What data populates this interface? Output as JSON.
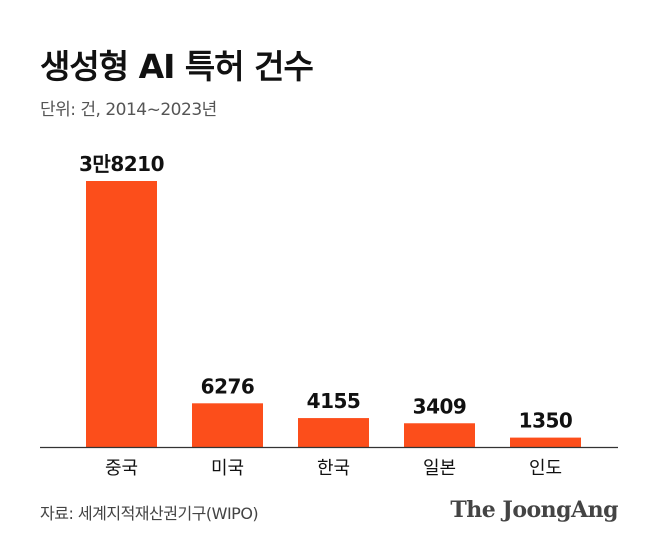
{
  "header": {
    "title": "생성형 AI 특허 건수",
    "unit": "단위: 건, 2014~2023년"
  },
  "footer": {
    "source": "자료: 세계지적재산권기구(WIPO)",
    "logo": "The JoongAng"
  },
  "colors": {
    "bar": "#FC4E1B",
    "axis": "#333333",
    "label": "#111111"
  },
  "chart_data": {
    "type": "bar",
    "title": "생성형 AI 특허 건수",
    "subtitle": "단위: 건, 2014~2023년",
    "categories": [
      "중국",
      "미국",
      "한국",
      "일본",
      "인도"
    ],
    "values": [
      38210,
      6276,
      4155,
      3409,
      1350
    ],
    "data_labels": [
      "3만8210",
      "6276",
      "4155",
      "3409",
      "1350"
    ],
    "ylim": [
      0,
      38210
    ],
    "grid": false,
    "legend": "none"
  }
}
